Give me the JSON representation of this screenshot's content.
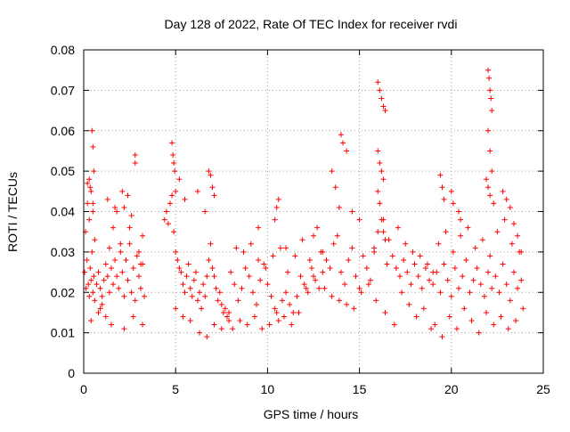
{
  "chart_data": {
    "type": "scatter",
    "title": "Day 128 of 2022, Rate Of TEC Index for receiver rvdi",
    "xlabel": "GPS time / hours",
    "ylabel": "ROTI / TECUs",
    "xlim": [
      0,
      25
    ],
    "ylim": [
      0,
      0.08
    ],
    "xticks": [
      0,
      5,
      10,
      15,
      20,
      25
    ],
    "xtick_labels": [
      "0",
      "5",
      "10",
      "15",
      "20",
      "25"
    ],
    "yticks": [
      0,
      0.01,
      0.02,
      0.03,
      0.04,
      0.05,
      0.06,
      0.07,
      0.08
    ],
    "ytick_labels": [
      "0",
      "0.01",
      "0.02",
      "0.03",
      "0.04",
      "0.05",
      "0.06",
      "0.07",
      "0.08"
    ],
    "grid": true,
    "marker": "plus",
    "marker_color": "#ff0000",
    "series": [
      {
        "x": [
          0.05,
          0.12,
          0.18,
          0.25,
          0.3,
          0.35,
          0.4,
          0.45,
          0.5,
          0.55,
          0.6,
          0.7,
          0.8,
          0.9,
          1.0,
          1.1,
          1.2,
          1.3,
          1.4,
          1.5,
          1.6,
          1.7,
          1.8,
          1.9,
          2.0,
          2.1,
          2.2,
          2.3,
          2.4,
          2.5,
          2.6,
          2.7,
          2.8,
          2.9,
          3.0,
          3.1,
          3.2,
          3.3,
          0.1,
          0.2,
          0.3,
          0.4,
          0.5,
          0.6,
          0.8,
          1.0,
          1.2,
          1.4,
          1.6,
          1.8,
          2.0,
          2.2,
          2.4,
          2.6,
          2.8,
          3.0,
          3.2,
          0.45,
          0.5,
          0.55,
          0.3,
          0.2,
          0.35,
          0.5,
          1.3,
          1.7,
          2.1,
          2.5,
          2.8,
          3.1,
          0.4,
          0.9,
          1.5,
          2.2,
          2.7,
          3.2,
          4.4,
          4.5,
          4.6,
          4.7,
          4.8,
          4.9,
          5.0,
          5.1,
          5.2,
          5.3,
          5.4,
          5.5,
          5.6,
          5.7,
          5.8,
          5.9,
          6.0,
          6.1,
          6.2,
          6.3,
          6.4,
          6.5,
          6.6,
          6.7,
          6.8,
          6.9,
          7.0,
          7.1,
          7.2,
          7.3,
          7.4,
          7.5,
          7.6,
          7.7,
          7.8,
          7.9,
          4.8,
          4.85,
          4.9,
          4.95,
          5.0,
          5.2,
          5.5,
          6.2,
          6.6,
          6.8,
          6.9,
          7.0,
          7.1,
          5.0,
          5.4,
          5.8,
          6.3,
          6.7,
          7.1,
          7.5,
          7.9,
          8.0,
          8.2,
          8.4,
          8.6,
          8.8,
          9.0,
          9.2,
          9.4,
          9.6,
          9.8,
          10.0,
          10.2,
          10.4,
          10.6,
          10.8,
          11.0,
          11.2,
          11.4,
          11.6,
          11.8,
          12.0,
          12.2,
          12.4,
          12.6,
          12.8,
          13.0,
          8.1,
          8.5,
          8.9,
          9.3,
          9.7,
          10.1,
          10.5,
          10.9,
          11.3,
          11.7,
          12.1,
          12.5,
          12.9,
          8.3,
          8.7,
          9.1,
          9.5,
          9.9,
          10.3,
          10.7,
          11.1,
          11.5,
          11.9,
          12.3,
          12.7,
          10.4,
          10.5,
          10.6,
          9.5,
          11.0,
          12.5,
          13.0,
          13.2,
          13.4,
          13.6,
          13.8,
          14.0,
          14.2,
          14.4,
          14.6,
          14.8,
          15.0,
          15.2,
          15.4,
          15.6,
          15.8,
          13.5,
          13.7,
          13.9,
          14.0,
          14.1,
          14.3,
          14.6,
          15.0,
          13.1,
          13.5,
          13.9,
          14.3,
          14.7,
          15.1,
          15.5,
          16.0,
          16.1,
          16.2,
          16.3,
          16.4,
          16.0,
          16.1,
          16.2,
          16.3,
          16.0,
          16.1,
          16.2,
          16.3,
          16.4,
          15.8,
          16.5,
          16.8,
          17.0,
          17.2,
          17.4,
          17.6,
          17.8,
          18.0,
          18.2,
          18.4,
          18.6,
          18.8,
          19.0,
          15.9,
          16.4,
          16.9,
          17.3,
          17.7,
          18.1,
          18.5,
          18.9,
          16.0,
          16.3,
          16.6,
          17.1,
          17.5,
          17.9,
          18.3,
          18.7,
          19.0,
          19.2,
          19.4,
          19.6,
          19.8,
          20.0,
          20.2,
          20.4,
          20.6,
          20.8,
          21.0,
          21.2,
          21.4,
          21.6,
          21.8,
          22.0,
          22.2,
          22.4,
          22.6,
          22.8,
          23.0,
          23.2,
          23.4,
          23.6,
          23.8,
          19.1,
          19.5,
          19.9,
          20.3,
          20.7,
          21.1,
          21.5,
          21.9,
          22.3,
          22.7,
          23.1,
          23.5,
          23.9,
          19.3,
          19.7,
          20.1,
          20.5,
          20.9,
          21.3,
          21.7,
          22.1,
          22.5,
          22.9,
          23.3,
          23.7,
          19.4,
          19.5,
          19.6,
          20.0,
          20.1,
          20.4,
          20.5,
          22.0,
          22.05,
          22.1,
          22.15,
          22.2,
          22.0,
          22.1,
          22.2,
          21.9,
          22.0,
          22.1,
          22.3,
          22.8,
          23.0,
          23.2,
          23.4,
          23.6,
          23.8
        ],
        "y": [
          0.025,
          0.021,
          0.028,
          0.022,
          0.019,
          0.026,
          0.023,
          0.03,
          0.02,
          0.024,
          0.018,
          0.022,
          0.025,
          0.021,
          0.019,
          0.023,
          0.027,
          0.024,
          0.02,
          0.026,
          0.022,
          0.028,
          0.024,
          0.021,
          0.03,
          0.025,
          0.019,
          0.028,
          0.023,
          0.032,
          0.02,
          0.026,
          0.018,
          0.029,
          0.024,
          0.021,
          0.027,
          0.019,
          0.035,
          0.042,
          0.038,
          0.045,
          0.04,
          0.033,
          0.015,
          0.017,
          0.014,
          0.031,
          0.036,
          0.04,
          0.032,
          0.041,
          0.044,
          0.039,
          0.052,
          0.03,
          0.034,
          0.06,
          0.056,
          0.05,
          0.048,
          0.047,
          0.046,
          0.042,
          0.043,
          0.041,
          0.045,
          0.036,
          0.054,
          0.027,
          0.013,
          0.016,
          0.012,
          0.011,
          0.014,
          0.012,
          0.038,
          0.04,
          0.037,
          0.042,
          0.044,
          0.035,
          0.03,
          0.028,
          0.026,
          0.025,
          0.022,
          0.02,
          0.024,
          0.027,
          0.021,
          0.019,
          0.023,
          0.025,
          0.018,
          0.02,
          0.016,
          0.022,
          0.019,
          0.024,
          0.028,
          0.032,
          0.026,
          0.024,
          0.021,
          0.018,
          0.02,
          0.017,
          0.015,
          0.016,
          0.014,
          0.013,
          0.057,
          0.054,
          0.052,
          0.05,
          0.045,
          0.048,
          0.043,
          0.045,
          0.04,
          0.05,
          0.049,
          0.046,
          0.044,
          0.016,
          0.014,
          0.013,
          0.01,
          0.009,
          0.012,
          0.011,
          0.015,
          0.025,
          0.022,
          0.018,
          0.021,
          0.026,
          0.024,
          0.02,
          0.017,
          0.023,
          0.027,
          0.022,
          0.019,
          0.016,
          0.013,
          0.018,
          0.02,
          0.017,
          0.015,
          0.019,
          0.024,
          0.022,
          0.02,
          0.026,
          0.023,
          0.021,
          0.025,
          0.011,
          0.013,
          0.012,
          0.014,
          0.011,
          0.012,
          0.015,
          0.014,
          0.012,
          0.015,
          0.021,
          0.024,
          0.03,
          0.031,
          0.03,
          0.032,
          0.028,
          0.026,
          0.029,
          0.031,
          0.025,
          0.029,
          0.033,
          0.028,
          0.036,
          0.038,
          0.041,
          0.043,
          0.036,
          0.031,
          0.034,
          0.03,
          0.028,
          0.026,
          0.032,
          0.034,
          0.025,
          0.022,
          0.028,
          0.031,
          0.024,
          0.021,
          0.029,
          0.026,
          0.023,
          0.03,
          0.05,
          0.046,
          0.041,
          0.059,
          0.057,
          0.055,
          0.04,
          0.038,
          0.021,
          0.019,
          0.018,
          0.017,
          0.016,
          0.02,
          0.022,
          0.072,
          0.07,
          0.068,
          0.066,
          0.065,
          0.055,
          0.052,
          0.05,
          0.048,
          0.045,
          0.042,
          0.038,
          0.035,
          0.033,
          0.031,
          0.027,
          0.029,
          0.026,
          0.024,
          0.028,
          0.025,
          0.022,
          0.027,
          0.024,
          0.021,
          0.026,
          0.023,
          0.025,
          0.018,
          0.015,
          0.012,
          0.02,
          0.017,
          0.014,
          0.016,
          0.011,
          0.035,
          0.038,
          0.033,
          0.036,
          0.032,
          0.03,
          0.029,
          0.027,
          0.022,
          0.025,
          0.02,
          0.027,
          0.023,
          0.019,
          0.026,
          0.021,
          0.024,
          0.028,
          0.02,
          0.023,
          0.026,
          0.022,
          0.019,
          0.025,
          0.021,
          0.024,
          0.02,
          0.027,
          0.022,
          0.018,
          0.025,
          0.021,
          0.023,
          0.012,
          0.009,
          0.014,
          0.011,
          0.016,
          0.013,
          0.01,
          0.015,
          0.012,
          0.014,
          0.011,
          0.013,
          0.016,
          0.032,
          0.035,
          0.03,
          0.034,
          0.036,
          0.031,
          0.033,
          0.029,
          0.035,
          0.038,
          0.032,
          0.03,
          0.049,
          0.046,
          0.043,
          0.045,
          0.042,
          0.04,
          0.038,
          0.075,
          0.073,
          0.07,
          0.068,
          0.065,
          0.06,
          0.055,
          0.05,
          0.048,
          0.046,
          0.044,
          0.042,
          0.045,
          0.043,
          0.041,
          0.037,
          0.034,
          0.03
        ]
      }
    ]
  }
}
